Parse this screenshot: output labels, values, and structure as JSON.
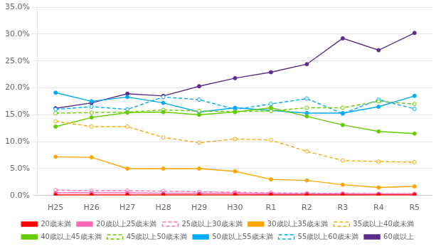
{
  "chart_data": {
    "type": "line",
    "categories": [
      "H25",
      "H26",
      "H27",
      "H28",
      "H29",
      "H30",
      "R1",
      "R2",
      "R3",
      "R4",
      "R5"
    ],
    "series": [
      {
        "name": "20歳未満",
        "color": "#FF0000",
        "line_style": "solid",
        "marker": "circle",
        "values": [
          0.001,
          0.001,
          0.001,
          0.001,
          0.001,
          0.001,
          0.001,
          0.001,
          0.001,
          0.001,
          0.001
        ]
      },
      {
        "name": "20歳以上25歳未満",
        "color": "#FF69B4",
        "line_style": "solid",
        "marker": "circle",
        "values": [
          0.005,
          0.005,
          0.005,
          0.004,
          0.004,
          0.004,
          0.003,
          0.003,
          0.003,
          0.003,
          0.003
        ]
      },
      {
        "name": "25歳以上30歳未満",
        "color": "#FF69B4",
        "line_style": "dashed",
        "marker": "open circle",
        "values": [
          0.01,
          0.009,
          0.009,
          0.008,
          0.007,
          0.006,
          0.005,
          0.004,
          0.004,
          0.003,
          0.003
        ]
      },
      {
        "name": "30歳以上35歳未満",
        "color": "#FFA500",
        "line_style": "solid",
        "marker": "circle",
        "values": [
          0.072,
          0.071,
          0.05,
          0.05,
          0.05,
          0.045,
          0.03,
          0.028,
          0.02,
          0.015,
          0.017
        ]
      },
      {
        "name": "35歳以上40歳未満",
        "color": "#FFA500",
        "line_style": "dashed",
        "marker": "open circle",
        "values": [
          0.138,
          0.128,
          0.128,
          0.108,
          0.098,
          0.105,
          0.103,
          0.082,
          0.065,
          0.063,
          0.062
        ]
      },
      {
        "name": "40歳以上45歳未満",
        "color": "#66CC00",
        "line_style": "solid",
        "marker": "circle",
        "values": [
          0.128,
          0.145,
          0.154,
          0.155,
          0.15,
          0.155,
          0.163,
          0.147,
          0.131,
          0.119,
          0.115
        ]
      },
      {
        "name": "45歳以上50歳未満",
        "color": "#66CC00",
        "line_style": "dashed",
        "marker": "open circle",
        "values": [
          0.153,
          0.154,
          0.155,
          0.159,
          0.157,
          0.156,
          0.157,
          0.163,
          0.163,
          0.175,
          0.17
        ]
      },
      {
        "name": "50歳以上55歳未満",
        "color": "#00AAFF",
        "line_style": "solid",
        "marker": "circle",
        "values": [
          0.191,
          0.175,
          0.183,
          0.172,
          0.155,
          0.163,
          0.158,
          0.153,
          0.153,
          0.165,
          0.185
        ]
      },
      {
        "name": "55歳以上60歳未満",
        "color": "#00AAFF",
        "line_style": "dashed",
        "marker": "open circle",
        "values": [
          0.16,
          0.165,
          0.16,
          0.183,
          0.178,
          0.16,
          0.17,
          0.18,
          0.152,
          0.178,
          0.161
        ]
      },
      {
        "name": "60歳以上",
        "color": "#5B2C8B",
        "line_style": "solid",
        "marker": "circle",
        "values": [
          0.162,
          0.172,
          0.189,
          0.185,
          0.203,
          0.218,
          0.229,
          0.244,
          0.292,
          0.27,
          0.302
        ]
      }
    ],
    "ylim": [
      0.0,
      0.35
    ],
    "yticks": [
      {
        "value": 0.0,
        "label": "0.0%"
      },
      {
        "value": 0.05,
        "label": "5.0%"
      },
      {
        "value": 0.1,
        "label": "10.0%"
      },
      {
        "value": 0.15,
        "label": "15.0%"
      },
      {
        "value": 0.2,
        "label": "20.0%"
      },
      {
        "value": 0.25,
        "label": "25.0%"
      },
      {
        "value": 0.3,
        "label": "30.0%"
      },
      {
        "value": 0.35,
        "label": "35.0%"
      }
    ],
    "grid": "y",
    "legend": "bottom"
  }
}
